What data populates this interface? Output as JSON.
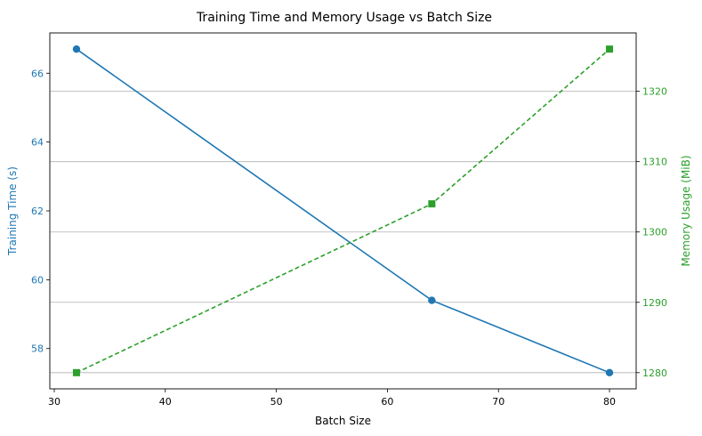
{
  "chart_data": {
    "type": "line",
    "title": "Training Time and Memory Usage vs Batch Size",
    "xlabel": "Batch Size",
    "xlim": [
      29.6,
      82.4
    ],
    "x_ticks": [
      30,
      40,
      50,
      60,
      70,
      80
    ],
    "x": [
      32,
      64,
      80
    ],
    "left_axis": {
      "label": "Training Time (s)",
      "color": "#1f77b4",
      "ylim": [
        56.83,
        67.17
      ],
      "ticks": [
        58,
        60,
        62,
        64,
        66
      ]
    },
    "right_axis": {
      "label": "Memory Usage (MiB)",
      "color": "#2ca02c",
      "ylim": [
        1277.7,
        1328.3
      ],
      "ticks": [
        1280,
        1290,
        1300,
        1310,
        1320
      ]
    },
    "series": [
      {
        "axis": "left",
        "values": [
          66.7,
          59.4,
          57.3
        ],
        "color": "#1f77b4",
        "marker": "circle",
        "line_style": "solid"
      },
      {
        "axis": "right",
        "values": [
          1280,
          1304,
          1326
        ],
        "color": "#2ca02c",
        "marker": "square",
        "line_style": "dashed"
      }
    ],
    "grid": "horizontal lines at right-axis ticks",
    "legend": "none"
  }
}
